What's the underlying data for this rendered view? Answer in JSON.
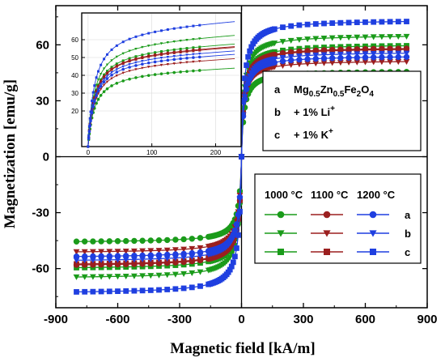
{
  "chart_data": {
    "type": "line",
    "xlabel": "Magnetic field [kA/m]",
    "ylabel": "Magnetization [emu/g]",
    "xlim": [
      -900,
      900
    ],
    "ylim": [
      -81,
      81
    ],
    "x_ticks": [
      -900,
      -600,
      -300,
      0,
      300,
      600,
      900
    ],
    "x_tick_labels": [
      "-900",
      "-600",
      "-300",
      "0",
      "300",
      "600",
      "900"
    ],
    "y_ticks": [
      -60,
      -30,
      0,
      30,
      60
    ],
    "y_tick_labels": [
      "-60",
      "-30",
      "0",
      "30",
      "60"
    ],
    "x_max_field": 800,
    "series": [
      {
        "name": "a",
        "temperature": "1000 °C",
        "color": "#1a9b1a",
        "marker": "circle",
        "saturation": 45.5
      },
      {
        "name": "b",
        "temperature": "1000 °C",
        "color": "#1a9b1a",
        "marker": "triangle-down",
        "saturation": 64.5
      },
      {
        "name": "c",
        "temperature": "1000 °C",
        "color": "#1a9b1a",
        "marker": "square",
        "saturation": 59.5
      },
      {
        "name": "a",
        "temperature": "1100 °C",
        "color": "#9b1f1f",
        "marker": "circle",
        "saturation": 58.0
      },
      {
        "name": "b",
        "temperature": "1100 °C",
        "color": "#9b1f1f",
        "marker": "triangle-down",
        "saturation": 51.0
      },
      {
        "name": "c",
        "temperature": "1100 °C",
        "color": "#9b1f1f",
        "marker": "square",
        "saturation": 57.5
      },
      {
        "name": "a",
        "temperature": "1200 °C",
        "color": "#1f3fe0",
        "marker": "circle",
        "saturation": 53.5
      },
      {
        "name": "b",
        "temperature": "1200 °C",
        "color": "#1f3fe0",
        "marker": "triangle-down",
        "saturation": 55.5
      },
      {
        "name": "c",
        "temperature": "1200 °C",
        "color": "#1f3fe0",
        "marker": "square",
        "saturation": 72.5
      }
    ],
    "legend_materials": {
      "placement": "top-right",
      "entries": [
        {
          "letter": "a",
          "label": "Mg0.5Zn0.5Fe2O4"
        },
        {
          "letter": "b",
          "label": "+ 1% Li+"
        },
        {
          "letter": "c",
          "label": "+ 1% K+"
        }
      ]
    },
    "legend_temperatures": {
      "placement": "bottom-right",
      "headers": [
        "1000 °C",
        "1100 °C",
        "1200 °C"
      ],
      "rows": [
        "a",
        "b",
        "c"
      ]
    },
    "inset": {
      "placement": "top-left",
      "xlim": [
        -10,
        240
      ],
      "ylim": [
        0,
        75
      ],
      "x_ticks": [
        0,
        100,
        200
      ],
      "x_tick_labels": [
        "0",
        "100",
        "200"
      ],
      "y_ticks": [
        20,
        30,
        40,
        50,
        60
      ],
      "y_tick_labels": [
        "20",
        "30",
        "40",
        "50",
        "60"
      ]
    }
  }
}
